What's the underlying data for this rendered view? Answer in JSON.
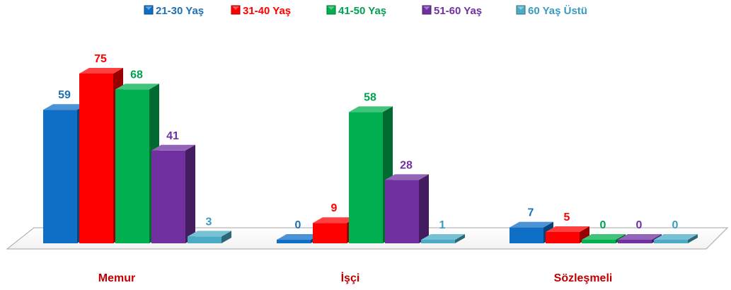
{
  "chart_data": {
    "type": "bar",
    "title": "",
    "xlabel": "",
    "ylabel": "",
    "ylim": [
      0,
      80
    ],
    "grid": false,
    "legend_position": "top",
    "categories": [
      "Memur",
      "İşçi",
      "Sözleşmeli"
    ],
    "category_color": "#c00000",
    "series": [
      {
        "name": "21-30 Yaş",
        "values": [
          59,
          0,
          7
        ],
        "color": "#0f6fc6"
      },
      {
        "name": "31-40 Yaş",
        "values": [
          75,
          9,
          5
        ],
        "color": "#ff0000"
      },
      {
        "name": "41-50 Yaş",
        "values": [
          68,
          58,
          0
        ],
        "color": "#00b050"
      },
      {
        "name": "51-60 Yaş",
        "values": [
          41,
          28,
          0
        ],
        "color": "#7030a0"
      },
      {
        "name": "60 Yaş Üstü",
        "values": [
          3,
          1,
          0
        ],
        "color": "#4bacc6"
      }
    ],
    "label_colors": [
      "#1f6fb5",
      "#ff0000",
      "#00a050",
      "#7030a0",
      "#3a9bbf"
    ]
  }
}
